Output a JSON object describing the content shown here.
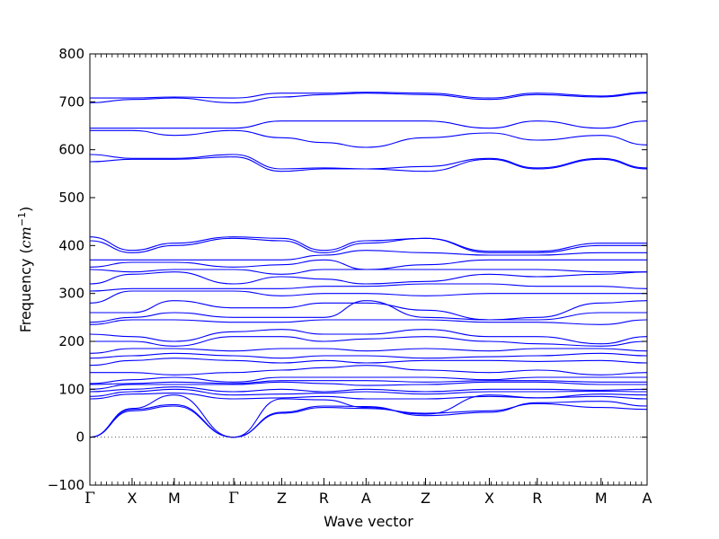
{
  "chart_data": {
    "type": "line",
    "xlabel": "Wave vector",
    "ylabel_prefix": "Frequency (",
    "ylabel_unit_base": "cm",
    "ylabel_unit_exp": "−1",
    "ylabel_suffix": ")",
    "ylim": [
      -100,
      800
    ],
    "yticks": [
      -100,
      0,
      100,
      200,
      300,
      400,
      500,
      600,
      700,
      800
    ],
    "xlim": [
      0,
      11.62
    ],
    "kpoints": [
      {
        "label": "Γ",
        "x": 0.0
      },
      {
        "label": "X",
        "x": 0.88
      },
      {
        "label": "M",
        "x": 1.76
      },
      {
        "label": "Γ",
        "x": 3.0
      },
      {
        "label": "Z",
        "x": 4.0
      },
      {
        "label": "R",
        "x": 4.88
      },
      {
        "label": "A",
        "x": 5.76
      },
      {
        "label": "Z",
        "x": 7.0
      },
      {
        "label": "X",
        "x": 8.33
      },
      {
        "label": "R",
        "x": 9.33
      },
      {
        "label": "M",
        "x": 10.66
      },
      {
        "label": "A",
        "x": 11.62
      }
    ],
    "zero_line": true,
    "line_color": "#0000ff",
    "series": [
      {
        "y": [
          0,
          55,
          65,
          0,
          50,
          62,
          60,
          50,
          55,
          70,
          62,
          58
        ]
      },
      {
        "y": [
          0,
          58,
          68,
          0,
          52,
          65,
          64,
          45,
          52,
          72,
          75,
          65
        ]
      },
      {
        "y": [
          0,
          60,
          88,
          0,
          80,
          78,
          62,
          48,
          88,
          82,
          85,
          80
        ]
      },
      {
        "y": [
          80,
          90,
          92,
          80,
          82,
          85,
          80,
          80,
          85,
          82,
          90,
          88
        ]
      },
      {
        "y": [
          85,
          95,
          100,
          88,
          90,
          92,
          95,
          90,
          95,
          95,
          96,
          95
        ]
      },
      {
        "y": [
          95,
          100,
          105,
          95,
          100,
          95,
          100,
          95,
          100,
          100,
          98,
          100
        ]
      },
      {
        "y": [
          100,
          110,
          110,
          110,
          115,
          112,
          108,
          110,
          115,
          115,
          110,
          110
        ]
      },
      {
        "y": [
          110,
          112,
          115,
          112,
          118,
          118,
          118,
          115,
          118,
          118,
          115,
          115
        ]
      },
      {
        "y": [
          112,
          120,
          125,
          115,
          125,
          125,
          125,
          125,
          120,
          125,
          125,
          125
        ]
      },
      {
        "y": [
          135,
          135,
          130,
          135,
          140,
          145,
          150,
          140,
          135,
          140,
          130,
          135
        ]
      },
      {
        "y": [
          150,
          160,
          165,
          160,
          155,
          160,
          155,
          160,
          160,
          158,
          160,
          155
        ]
      },
      {
        "y": [
          165,
          170,
          175,
          170,
          165,
          170,
          170,
          165,
          168,
          170,
          175,
          170
        ]
      },
      {
        "y": [
          175,
          185,
          185,
          180,
          185,
          185,
          180,
          185,
          180,
          185,
          185,
          180
        ]
      },
      {
        "y": [
          200,
          200,
          190,
          210,
          210,
          200,
          205,
          210,
          200,
          195,
          190,
          200
        ]
      },
      {
        "y": [
          215,
          210,
          200,
          220,
          225,
          215,
          215,
          225,
          210,
          210,
          195,
          210
        ]
      },
      {
        "y": [
          235,
          245,
          245,
          240,
          240,
          245,
          245,
          245,
          240,
          240,
          235,
          245
        ]
      },
      {
        "y": [
          240,
          250,
          260,
          250,
          250,
          250,
          285,
          250,
          245,
          245,
          260,
          260
        ]
      },
      {
        "y": [
          260,
          260,
          285,
          270,
          270,
          280,
          280,
          265,
          245,
          250,
          280,
          285
        ]
      },
      {
        "y": [
          280,
          305,
          305,
          305,
          295,
          300,
          300,
          295,
          300,
          300,
          300,
          300
        ]
      },
      {
        "y": [
          305,
          310,
          310,
          310,
          310,
          315,
          315,
          320,
          320,
          315,
          315,
          310
        ]
      },
      {
        "y": [
          320,
          340,
          345,
          320,
          335,
          330,
          320,
          325,
          340,
          335,
          340,
          345
        ]
      },
      {
        "y": [
          350,
          345,
          350,
          350,
          340,
          350,
          350,
          350,
          350,
          350,
          345,
          345
        ]
      },
      {
        "y": [
          355,
          365,
          365,
          355,
          360,
          370,
          350,
          360,
          370,
          370,
          370,
          370
        ]
      },
      {
        "y": [
          370,
          370,
          370,
          370,
          370,
          380,
          390,
          385,
          380,
          380,
          385,
          385
        ]
      },
      {
        "y": [
          410,
          385,
          400,
          415,
          410,
          385,
          405,
          415,
          385,
          385,
          400,
          400
        ]
      },
      {
        "y": [
          418,
          390,
          405,
          418,
          415,
          390,
          410,
          415,
          388,
          388,
          405,
          405
        ]
      },
      {
        "y": [
          575,
          580,
          580,
          585,
          555,
          560,
          560,
          555,
          580,
          560,
          580,
          560
        ]
      },
      {
        "y": [
          590,
          582,
          582,
          590,
          560,
          562,
          560,
          565,
          582,
          562,
          582,
          562
        ]
      },
      {
        "y": [
          640,
          640,
          630,
          640,
          625,
          615,
          605,
          625,
          635,
          620,
          630,
          610
        ]
      },
      {
        "y": [
          645,
          645,
          645,
          645,
          660,
          660,
          660,
          660,
          645,
          660,
          645,
          660
        ]
      },
      {
        "y": [
          698,
          705,
          708,
          698,
          710,
          715,
          718,
          715,
          705,
          715,
          710,
          718
        ]
      },
      {
        "y": [
          708,
          708,
          710,
          708,
          718,
          718,
          720,
          718,
          708,
          718,
          712,
          720
        ]
      }
    ]
  }
}
